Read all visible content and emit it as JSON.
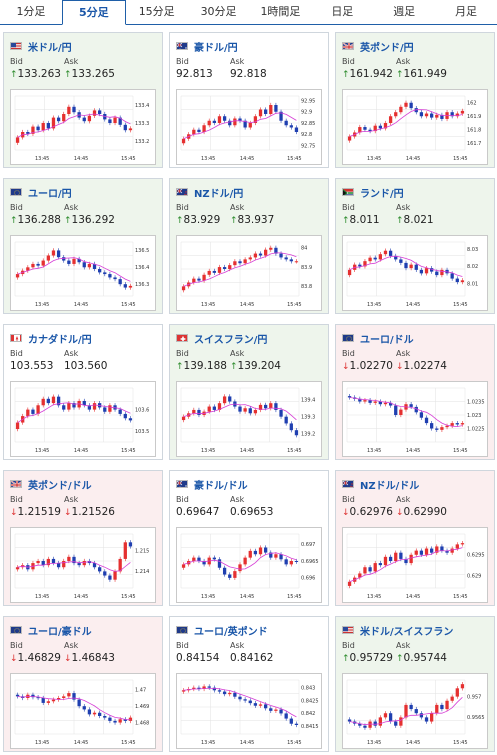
{
  "tabs": [
    {
      "label": "1分足",
      "active": false
    },
    {
      "label": "5分足",
      "active": true
    },
    {
      "label": "15分足",
      "active": false
    },
    {
      "label": "30分足",
      "active": false
    },
    {
      "label": "1時間足",
      "active": false
    },
    {
      "label": "日足",
      "active": false
    },
    {
      "label": "週足",
      "active": false
    },
    {
      "label": "月足",
      "active": false
    }
  ],
  "bid_label": "Bid",
  "ask_label": "Ask",
  "cards": [
    {
      "pair": "米ドル/円",
      "flag": "us",
      "dir": "up",
      "bid": "133.263",
      "ask": "133.265",
      "chart_data": {
        "type": "candlestick",
        "x_ticks": [
          "13:45",
          "14:45",
          "15:45"
        ],
        "y_ticks": [
          "133.4",
          "133.3",
          "133.2"
        ],
        "ylim": [
          133.15,
          133.45
        ],
        "close": [
          133.22,
          133.25,
          133.24,
          133.28,
          133.26,
          133.3,
          133.27,
          133.33,
          133.31,
          133.35,
          133.39,
          133.36,
          133.33,
          133.31,
          133.34,
          133.37,
          133.35,
          133.32,
          133.3,
          133.33,
          133.29,
          133.26,
          133.27
        ]
      }
    },
    {
      "pair": "豪ドル/円",
      "flag": "au",
      "dir": "none",
      "bid": "92.813",
      "ask": "92.818",
      "chart_data": {
        "type": "candlestick",
        "x_ticks": [
          "13:45",
          "14:45",
          "15:45"
        ],
        "y_ticks": [
          "92.95",
          "92.9",
          "92.85",
          "92.8",
          "92.75"
        ],
        "ylim": [
          92.73,
          92.97
        ],
        "close": [
          92.78,
          92.8,
          92.82,
          92.81,
          92.84,
          92.86,
          92.85,
          92.88,
          92.86,
          92.84,
          92.87,
          92.86,
          92.83,
          92.85,
          92.88,
          92.91,
          92.89,
          92.93,
          92.9,
          92.86,
          92.84,
          92.83,
          92.81
        ]
      }
    },
    {
      "pair": "英ポンド/円",
      "flag": "uk",
      "dir": "up",
      "bid": "161.942",
      "ask": "161.949",
      "chart_data": {
        "type": "candlestick",
        "x_ticks": [
          "13:45",
          "14:45",
          "15:45"
        ],
        "y_ticks": [
          "162",
          "161.9",
          "161.8",
          "161.7"
        ],
        "ylim": [
          161.65,
          162.05
        ],
        "close": [
          161.75,
          161.78,
          161.82,
          161.8,
          161.79,
          161.83,
          161.81,
          161.85,
          161.9,
          161.93,
          161.97,
          162.0,
          161.96,
          161.93,
          161.9,
          161.92,
          161.89,
          161.91,
          161.88,
          161.93,
          161.9,
          161.92,
          161.94
        ]
      }
    },
    {
      "pair": "ユーロ/円",
      "flag": "eu",
      "dir": "up",
      "bid": "136.288",
      "ask": "136.292",
      "chart_data": {
        "type": "candlestick",
        "x_ticks": [
          "13:45",
          "14:45",
          "15:45"
        ],
        "y_ticks": [
          "136.5",
          "136.4",
          "136.3"
        ],
        "ylim": [
          136.23,
          136.55
        ],
        "close": [
          136.36,
          136.38,
          136.4,
          136.42,
          136.41,
          136.44,
          136.47,
          136.5,
          136.46,
          136.44,
          136.42,
          136.45,
          136.43,
          136.4,
          136.42,
          136.39,
          136.37,
          136.36,
          136.34,
          136.33,
          136.3,
          136.28,
          136.29
        ]
      }
    },
    {
      "pair": "NZドル/円",
      "flag": "nz",
      "dir": "up",
      "bid": "83.929",
      "ask": "83.937",
      "chart_data": {
        "type": "candlestick",
        "x_ticks": [
          "13:45",
          "14:45",
          "15:45"
        ],
        "y_ticks": [
          "84",
          "83.9",
          "83.8"
        ],
        "ylim": [
          83.75,
          84.03
        ],
        "close": [
          83.8,
          83.82,
          83.84,
          83.83,
          83.86,
          83.88,
          83.87,
          83.9,
          83.89,
          83.91,
          83.93,
          83.92,
          83.94,
          83.95,
          83.97,
          83.96,
          83.99,
          84.0,
          83.97,
          83.95,
          83.94,
          83.93,
          83.93
        ]
      }
    },
    {
      "pair": "ランド/円",
      "flag": "za",
      "dir": "up",
      "bid": "8.011",
      "ask": "8.021",
      "chart_data": {
        "type": "candlestick",
        "x_ticks": [
          "13:45",
          "14:45",
          "15:45"
        ],
        "y_ticks": [
          "8.03",
          "8.02",
          "8.01"
        ],
        "ylim": [
          8.003,
          8.034
        ],
        "close": [
          8.018,
          8.021,
          8.02,
          8.023,
          8.025,
          8.024,
          8.027,
          8.029,
          8.026,
          8.024,
          8.022,
          8.019,
          8.021,
          8.018,
          8.016,
          8.019,
          8.017,
          8.015,
          8.018,
          8.016,
          8.013,
          8.011,
          8.012
        ]
      }
    },
    {
      "pair": "カナダドル/円",
      "flag": "ca",
      "dir": "none",
      "bid": "103.553",
      "ask": "103.560",
      "chart_data": {
        "type": "candlestick",
        "x_ticks": [
          "13:45",
          "14:45",
          "15:45"
        ],
        "y_ticks": [
          "103.6",
          "103.5"
        ],
        "ylim": [
          103.45,
          103.7
        ],
        "close": [
          103.54,
          103.57,
          103.6,
          103.58,
          103.62,
          103.65,
          103.63,
          103.66,
          103.62,
          103.6,
          103.63,
          103.61,
          103.64,
          103.62,
          103.6,
          103.63,
          103.61,
          103.59,
          103.62,
          103.6,
          103.58,
          103.56,
          103.55
        ]
      }
    },
    {
      "pair": "スイスフラン/円",
      "flag": "ch",
      "dir": "up",
      "bid": "139.188",
      "ask": "139.204",
      "chart_data": {
        "type": "candlestick",
        "x_ticks": [
          "13:45",
          "14:45",
          "15:45"
        ],
        "y_ticks": [
          "139.4",
          "139.3",
          "139.2"
        ],
        "ylim": [
          139.15,
          139.47
        ],
        "close": [
          139.3,
          139.32,
          139.34,
          139.31,
          139.33,
          139.36,
          139.34,
          139.38,
          139.42,
          139.39,
          139.36,
          139.33,
          139.35,
          139.32,
          139.34,
          139.37,
          139.35,
          139.38,
          139.34,
          139.3,
          139.26,
          139.22,
          139.19
        ]
      }
    },
    {
      "pair": "ユーロ/ドル",
      "flag": "eu",
      "dir": "down",
      "bid": "1.02270",
      "ask": "1.02274",
      "chart_data": {
        "type": "candlestick",
        "x_ticks": [
          "13:45",
          "14:45",
          "15:45"
        ],
        "y_ticks": [
          "1.0235",
          "1.023",
          "1.0225"
        ],
        "ylim": [
          1.022,
          1.024
        ],
        "close": [
          1.02365,
          1.0236,
          1.0235,
          1.02355,
          1.02345,
          1.0235,
          1.0234,
          1.02345,
          1.02335,
          1.023,
          1.0232,
          1.0234,
          1.0233,
          1.0231,
          1.0229,
          1.0227,
          1.0225,
          1.02245,
          1.02255,
          1.0226,
          1.0227,
          1.02265,
          1.0227
        ]
      }
    },
    {
      "pair": "英ポンド/ドル",
      "flag": "uk",
      "dir": "down",
      "bid": "1.21519",
      "ask": "1.21526",
      "chart_data": {
        "type": "candlestick",
        "x_ticks": [
          "13:45",
          "14:45",
          "15:45"
        ],
        "y_ticks": [
          "1.215",
          "1.214"
        ],
        "ylim": [
          1.2132,
          1.2158
        ],
        "close": [
          1.2142,
          1.2143,
          1.2141,
          1.2144,
          1.2145,
          1.2143,
          1.2146,
          1.2144,
          1.2142,
          1.2145,
          1.2147,
          1.2144,
          1.2143,
          1.2145,
          1.2144,
          1.2142,
          1.214,
          1.2138,
          1.2136,
          1.214,
          1.2146,
          1.2154,
          1.2152
        ]
      }
    },
    {
      "pair": "豪ドル/ドル",
      "flag": "au",
      "dir": "none",
      "bid": "0.69647",
      "ask": "0.69653",
      "chart_data": {
        "type": "candlestick",
        "x_ticks": [
          "13:45",
          "14:45",
          "15:45"
        ],
        "y_ticks": [
          "0.697",
          "0.6965",
          "0.696"
        ],
        "ylim": [
          0.6957,
          0.6973
        ],
        "close": [
          0.6964,
          0.6965,
          0.6966,
          0.6965,
          0.6964,
          0.6966,
          0.69655,
          0.6963,
          0.6961,
          0.696,
          0.6962,
          0.6964,
          0.6966,
          0.6968,
          0.6967,
          0.6969,
          0.69675,
          0.6966,
          0.6967,
          0.69655,
          0.6964,
          0.6965,
          0.69648
        ]
      }
    },
    {
      "pair": "NZドル/ドル",
      "flag": "nz",
      "dir": "down",
      "bid": "0.62976",
      "ask": "0.62990",
      "chart_data": {
        "type": "candlestick",
        "x_ticks": [
          "13:45",
          "14:45",
          "15:45"
        ],
        "y_ticks": [
          "0.6295",
          "0.629"
        ],
        "ylim": [
          0.6287,
          0.63
        ],
        "close": [
          0.62885,
          0.62895,
          0.62905,
          0.6292,
          0.6291,
          0.6293,
          0.62925,
          0.62945,
          0.62935,
          0.62955,
          0.6294,
          0.6293,
          0.6295,
          0.6296,
          0.6295,
          0.62965,
          0.62955,
          0.6297,
          0.6296,
          0.62955,
          0.62965,
          0.62975,
          0.62978
        ]
      }
    },
    {
      "pair": "ユーロ/豪ドル",
      "flag": "eu",
      "dir": "down",
      "bid": "1.46829",
      "ask": "1.46843",
      "chart_data": {
        "type": "candlestick",
        "x_ticks": [
          "13:45",
          "14:45",
          "15:45"
        ],
        "y_ticks": [
          "1.47",
          "1.469",
          "1.468"
        ],
        "ylim": [
          1.4673,
          1.4706
        ],
        "close": [
          1.4696,
          1.4695,
          1.4697,
          1.46955,
          1.4695,
          1.4692,
          1.4693,
          1.4694,
          1.4695,
          1.4696,
          1.4698,
          1.4694,
          1.469,
          1.4688,
          1.4685,
          1.4686,
          1.4684,
          1.4683,
          1.4681,
          1.468,
          1.4682,
          1.4681,
          1.4683
        ]
      }
    },
    {
      "pair": "ユーロ/英ポンド",
      "flag": "eu",
      "dir": "none",
      "bid": "0.84154",
      "ask": "0.84162",
      "chart_data": {
        "type": "candlestick",
        "x_ticks": [
          "13:45",
          "14:45",
          "15:45"
        ],
        "y_ticks": [
          "0.843",
          "0.8425",
          "0.842",
          "0.8415"
        ],
        "ylim": [
          0.8412,
          0.8433
        ],
        "close": [
          0.8429,
          0.84295,
          0.843,
          0.84295,
          0.84305,
          0.843,
          0.8429,
          0.84285,
          0.84275,
          0.8428,
          0.84265,
          0.84255,
          0.8425,
          0.8424,
          0.8423,
          0.84235,
          0.8422,
          0.8421,
          0.84215,
          0.842,
          0.8418,
          0.8416,
          0.84155
        ]
      }
    },
    {
      "pair": "米ドル/スイスフラン",
      "flag": "us",
      "dir": "up",
      "bid": "0.95729",
      "ask": "0.95744",
      "chart_data": {
        "type": "candlestick",
        "x_ticks": [
          "13:45",
          "14:45",
          "15:45"
        ],
        "y_ticks": [
          "0.957",
          "0.9565"
        ],
        "ylim": [
          0.9561,
          0.9574
        ],
        "close": [
          0.9564,
          0.95635,
          0.9563,
          0.95625,
          0.9564,
          0.9563,
          0.9565,
          0.9566,
          0.9564,
          0.9563,
          0.9565,
          0.9568,
          0.9567,
          0.9566,
          0.9565,
          0.9564,
          0.9566,
          0.9568,
          0.9567,
          0.9569,
          0.957,
          0.9572,
          0.9573
        ]
      }
    }
  ]
}
